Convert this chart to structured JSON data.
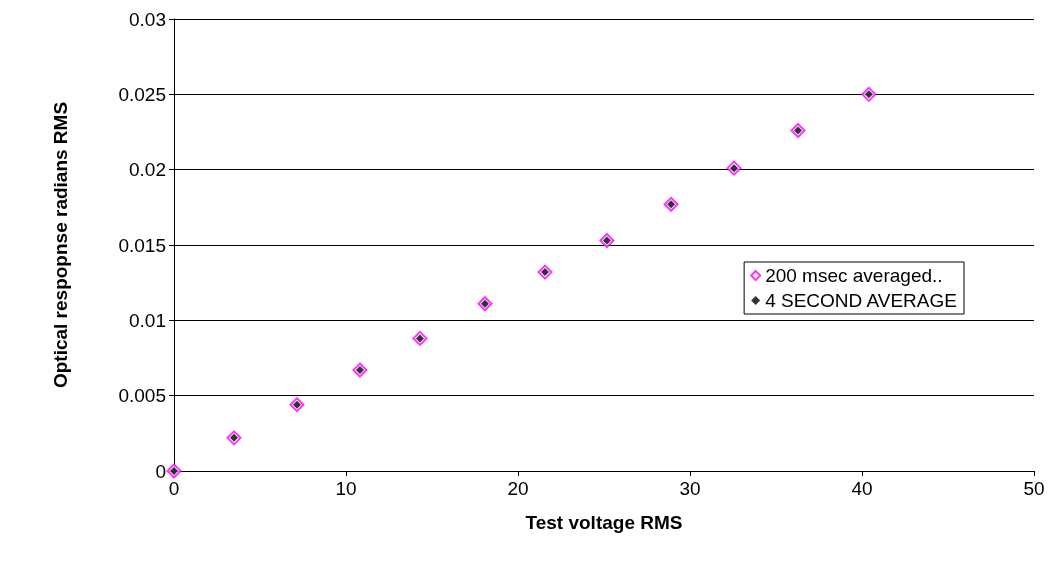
{
  "chart_data": {
    "type": "scatter",
    "xlabel": "Test voltage RMS",
    "ylabel": "Optical respopnse radians RMS",
    "x": [
      0,
      3.49,
      7.15,
      10.81,
      14.3,
      18.08,
      21.57,
      25.17,
      28.9,
      32.56,
      36.28,
      40.4
    ],
    "series": [
      {
        "name": "200 msec averaged..",
        "color": "#ff00ff",
        "values": [
          0,
          0.0022,
          0.0044,
          0.0067,
          0.0088,
          0.0111,
          0.0132,
          0.0153,
          0.0177,
          0.0201,
          0.0226,
          0.025
        ]
      },
      {
        "name": "4 SECOND AVERAGE",
        "color": "#000000",
        "values": [
          0,
          0.0022,
          0.0044,
          0.0067,
          0.0088,
          0.0111,
          0.0132,
          0.0153,
          0.0177,
          0.0201,
          0.0226,
          0.025
        ]
      }
    ],
    "xlim": [
      0,
      50
    ],
    "xticks": [
      0,
      10,
      20,
      30,
      40,
      50
    ],
    "ylim": [
      0,
      0.03
    ],
    "yticks": [
      0,
      0.005,
      0.01,
      0.015,
      0.02,
      0.025,
      0.03
    ],
    "grid": "y",
    "legend": "right",
    "marker": "diamond"
  }
}
